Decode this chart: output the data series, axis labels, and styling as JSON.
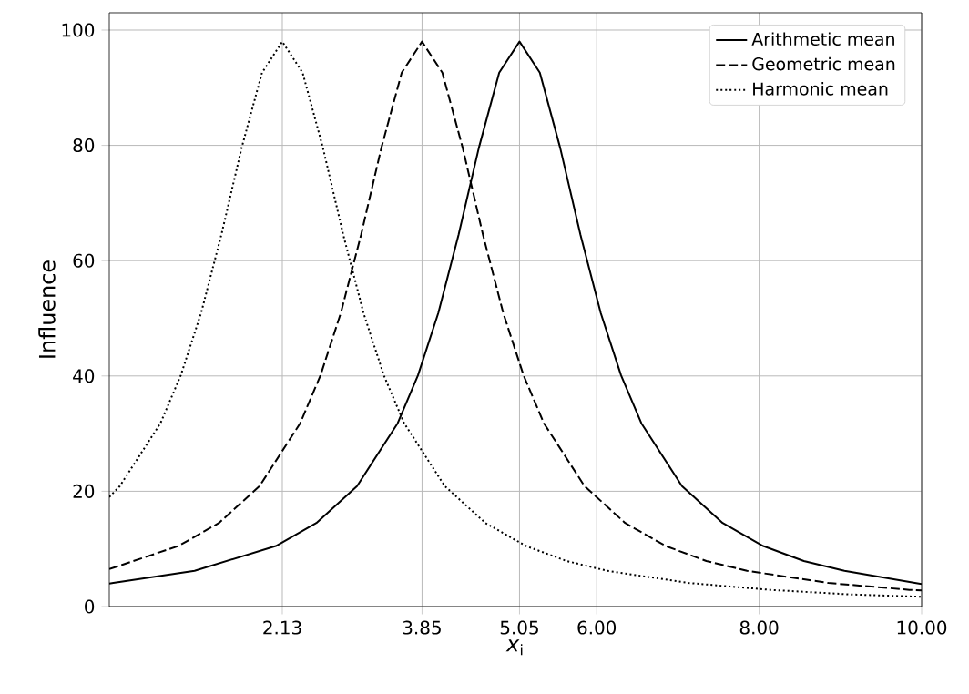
{
  "chart_data": {
    "type": "line",
    "xlabel": "*x*$_{i}$",
    "ylabel": "Influence",
    "xlim": [
      0,
      10
    ],
    "ylim": [
      0,
      103
    ],
    "xticks": [
      2.13,
      3.85,
      5.05,
      {
        "value": 6,
        "label": "6.00"
      },
      {
        "value": 8,
        "label": "8.00"
      },
      {
        "value": 10,
        "label": "10.00"
      }
    ],
    "yticks": [
      0,
      20,
      40,
      60,
      80,
      100
    ],
    "grid": true,
    "legend": "top right",
    "marker": "none",
    "series": [
      {
        "name": "Arithmetic mean",
        "color": "#000000",
        "line_style": "solid",
        "x": [
          0,
          0.05,
          1.05,
          2.05,
          2.55,
          3.05,
          3.55,
          3.8,
          4.05,
          4.3,
          4.55,
          4.8,
          5.05,
          5.3,
          5.55,
          5.8,
          6.05,
          6.3,
          6.55,
          7.05,
          7.55,
          8.05,
          8.55,
          9.05,
          10
        ],
        "values": [
          4.0,
          4.1,
          6.2,
          10.5,
          14.5,
          20.9,
          31.8,
          40.1,
          50.9,
          64.5,
          79.6,
          92.6,
          98,
          92.6,
          79.6,
          64.5,
          50.9,
          40.1,
          31.8,
          20.9,
          14.5,
          10.5,
          7.9,
          6.2,
          3.9
        ]
      },
      {
        "name": "Geometric mean",
        "color": "#000000",
        "line_style": "dashed",
        "x": [
          0,
          0.85,
          1.35,
          1.85,
          2.35,
          2.6,
          2.85,
          3.1,
          3.35,
          3.6,
          3.85,
          4.1,
          4.35,
          4.6,
          4.85,
          5.1,
          5.35,
          5.85,
          6.35,
          6.85,
          7.35,
          7.85,
          8.85,
          9.85,
          10
        ],
        "values": [
          6.5,
          10.5,
          14.5,
          20.9,
          31.8,
          40.1,
          50.9,
          64.5,
          79.6,
          92.6,
          98,
          92.6,
          79.6,
          64.5,
          50.9,
          40.1,
          31.8,
          20.9,
          14.5,
          10.5,
          7.9,
          6.2,
          4.1,
          2.9,
          2.8
        ]
      },
      {
        "name": "Harmonic mean",
        "color": "#000000",
        "line_style": "dotted",
        "x": [
          0,
          0.13,
          0.63,
          0.88,
          1.13,
          1.38,
          1.63,
          1.88,
          2.13,
          2.38,
          2.63,
          2.88,
          3.13,
          3.38,
          3.63,
          4.13,
          4.63,
          5.13,
          5.63,
          6.13,
          7.13,
          8.13,
          9.13,
          10
        ],
        "values": [
          19,
          20.9,
          31.8,
          40.1,
          50.9,
          64.5,
          79.6,
          92.6,
          98,
          92.6,
          79.6,
          64.5,
          50.9,
          40.1,
          31.8,
          20.9,
          14.5,
          10.5,
          7.9,
          6.2,
          4.1,
          2.9,
          2.1,
          1.7
        ]
      }
    ]
  }
}
